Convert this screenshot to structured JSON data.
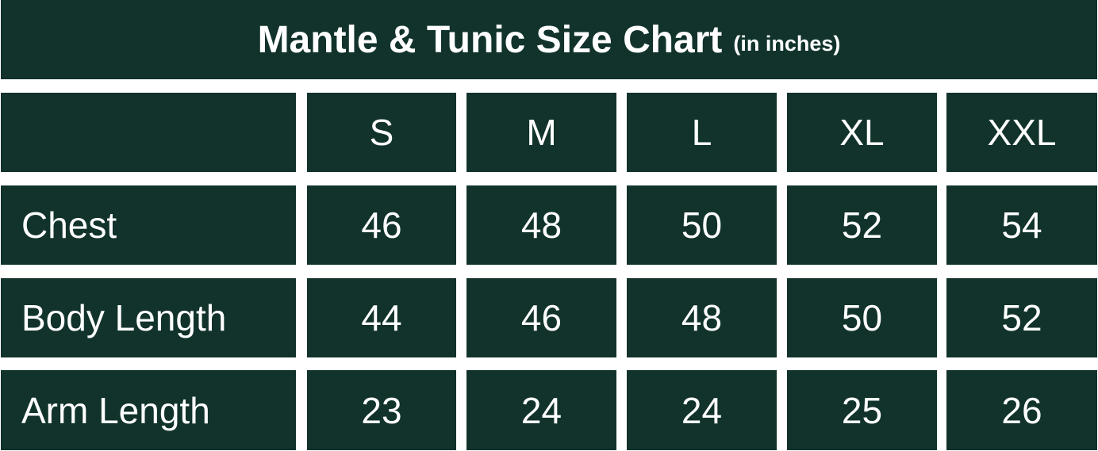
{
  "title": "Mantle & Tunic Size Chart",
  "subtitle": "(in inches)",
  "colors": {
    "cell_background": "#11332c",
    "text": "#ffffff",
    "gap": "#ffffff"
  },
  "table": {
    "header": [
      "",
      "S",
      "M",
      "L",
      "XL",
      "XXL"
    ],
    "rows": [
      {
        "label": "Chest",
        "values": [
          "46",
          "48",
          "50",
          "52",
          "54"
        ]
      },
      {
        "label": "Body Length",
        "values": [
          "44",
          "46",
          "48",
          "50",
          "52"
        ]
      },
      {
        "label": "Arm Length",
        "values": [
          "23",
          "24",
          "24",
          "25",
          "26"
        ]
      }
    ]
  }
}
